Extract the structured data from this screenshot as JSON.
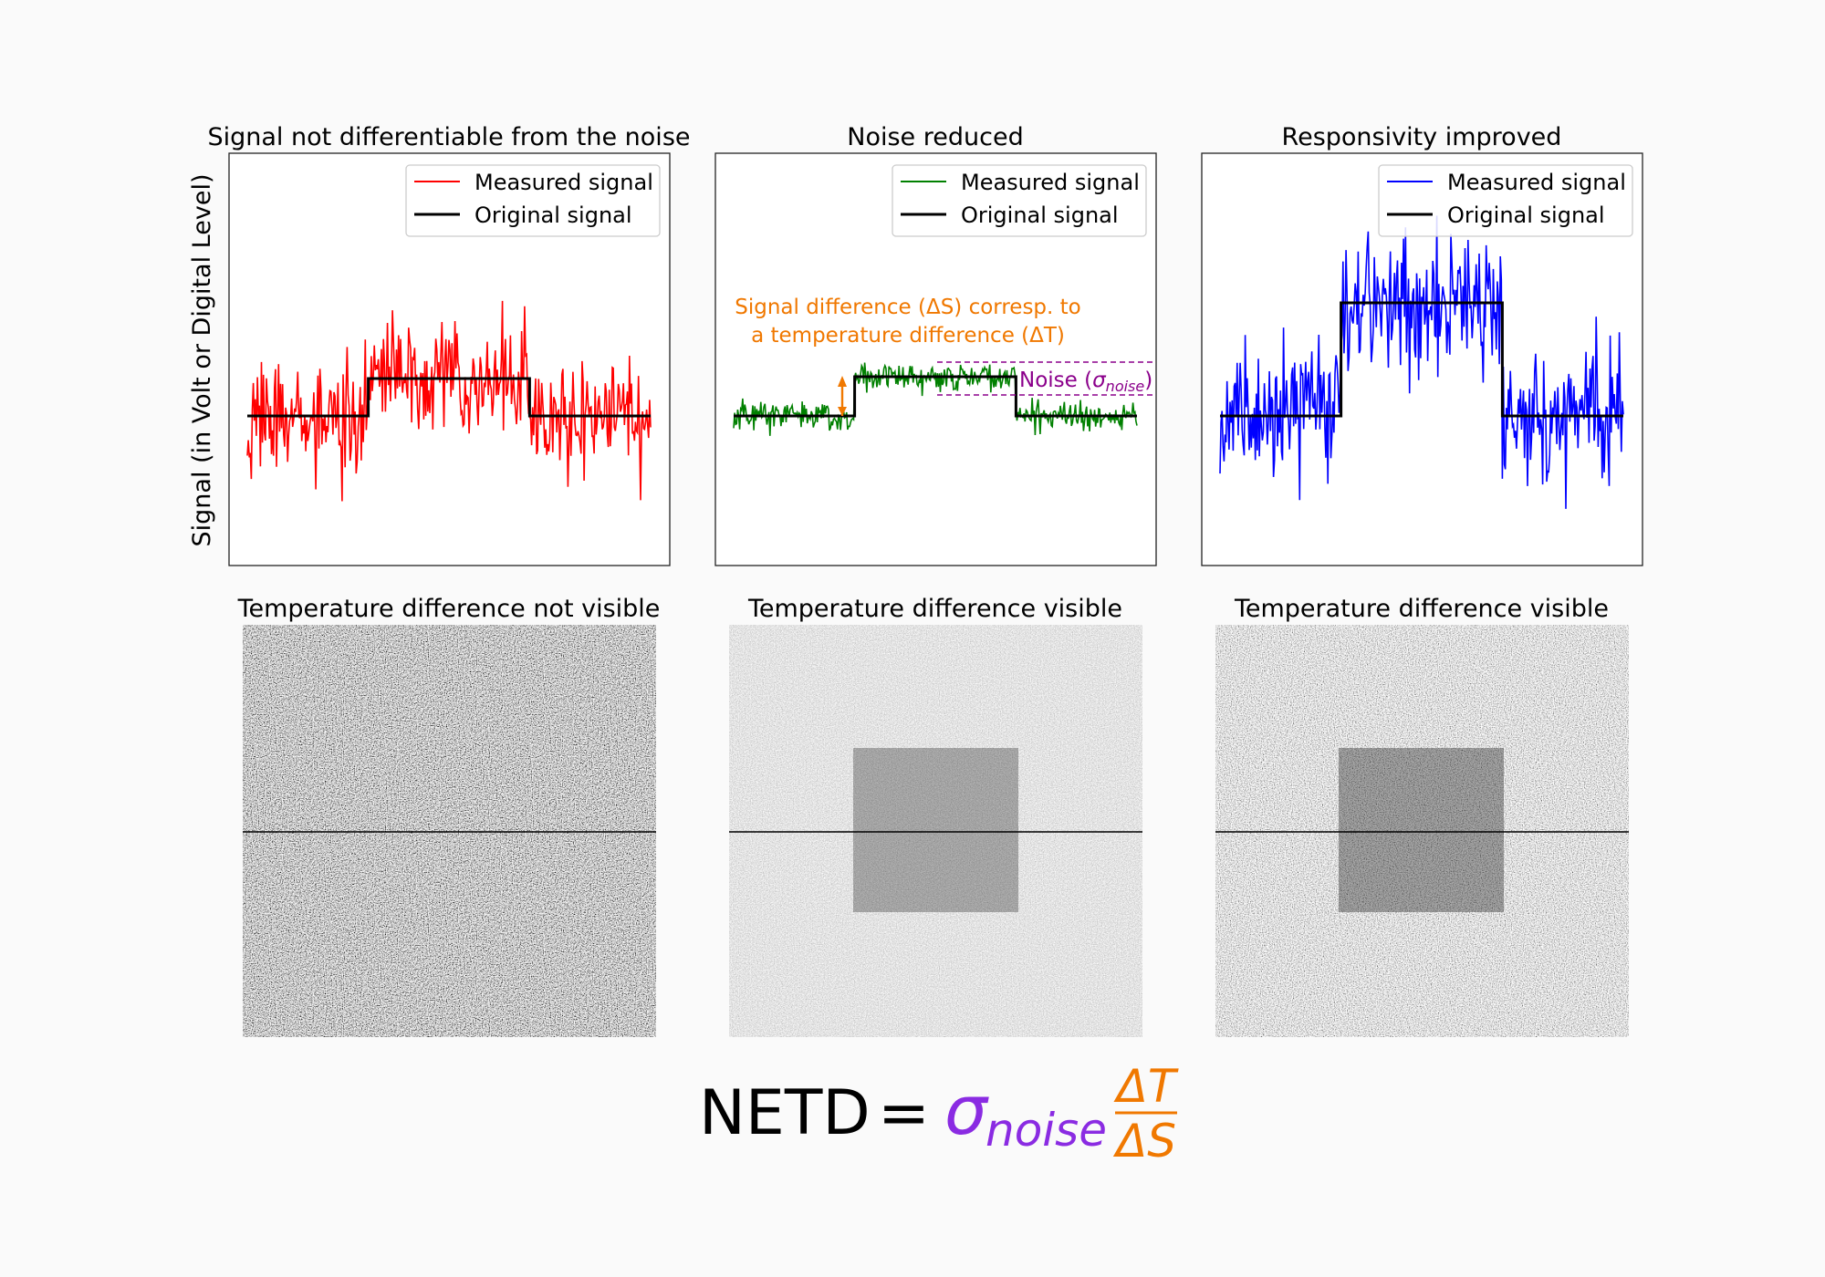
{
  "figure": {
    "ylabel": "Signal (in Volt or Digital Level)",
    "panels": [
      {
        "title": "Signal not differentiable from the noise",
        "image_title": "Temperature difference not visible",
        "series_color": "#ff0000",
        "legend": {
          "measured": "Measured signal",
          "original": "Original signal",
          "position": "top-right"
        }
      },
      {
        "title": "Noise reduced",
        "image_title": "Temperature difference visible",
        "series_color": "#008000",
        "legend": {
          "measured": "Measured signal",
          "original": "Original signal",
          "position": "top-right"
        },
        "annotations": {
          "delta_s_line1": "Signal difference (ΔS) corresp. to",
          "delta_s_line2": "a temperature difference (ΔT)",
          "delta_s_color": "#f07800",
          "noise_prefix": "Noise (",
          "noise_sigma": "σ",
          "noise_sub": "noise",
          "noise_suffix": ")",
          "noise_color": "#8b008b"
        }
      },
      {
        "title": "Responsivity improved",
        "image_title": "Temperature difference visible",
        "series_color": "#0000ff",
        "legend": {
          "measured": "Measured signal",
          "original": "Original signal",
          "position": "top-right"
        }
      }
    ],
    "formula": {
      "lhs": "NETD",
      "eq": "=",
      "sigma": "σ",
      "sub": "noise",
      "num": "ΔT",
      "den": "ΔS",
      "sigma_color": "#8a2be2",
      "frac_color": "#f07800"
    }
  }
}
